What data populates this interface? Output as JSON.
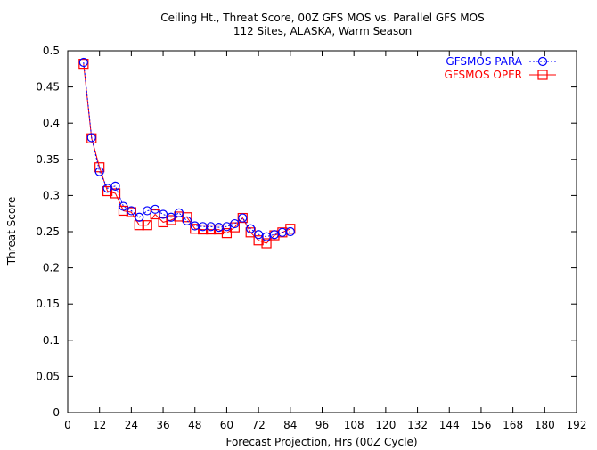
{
  "chart_data": {
    "type": "line",
    "title": "Ceiling Ht., Threat Score, 00Z GFS MOS vs. Parallel GFS MOS",
    "subtitle": "112 Sites, ALASKA, Warm Season",
    "xlabel": "Forecast Projection, Hrs (00Z Cycle)",
    "ylabel": "Threat Score",
    "xlim": [
      0,
      192
    ],
    "ylim": [
      0,
      0.5
    ],
    "xticks": [
      0,
      12,
      24,
      36,
      48,
      60,
      72,
      84,
      96,
      108,
      120,
      132,
      144,
      156,
      168,
      180,
      192
    ],
    "yticks": [
      0,
      0.05,
      0.1,
      0.15,
      0.2,
      0.25,
      0.3,
      0.35,
      0.4,
      0.45,
      0.5
    ],
    "grid": false,
    "legend_position": "top-right",
    "x": [
      6,
      9,
      12,
      15,
      18,
      21,
      24,
      27,
      30,
      33,
      36,
      39,
      42,
      45,
      48,
      51,
      54,
      57,
      60,
      63,
      66,
      69,
      72,
      75,
      78,
      81,
      84
    ],
    "series": [
      {
        "name": "GFSMOS PARA",
        "color": "#0000ff",
        "marker": "circle",
        "line": "dotted",
        "values": [
          0.484,
          0.38,
          0.333,
          0.31,
          0.313,
          0.285,
          0.279,
          0.27,
          0.279,
          0.281,
          0.274,
          0.27,
          0.276,
          0.265,
          0.258,
          0.257,
          0.257,
          0.256,
          0.257,
          0.261,
          0.269,
          0.254,
          0.246,
          0.243,
          0.246,
          0.249,
          0.25
        ]
      },
      {
        "name": "GFSMOS OPER",
        "color": "#ff0000",
        "marker": "square",
        "line": "solid",
        "values": [
          0.482,
          0.379,
          0.339,
          0.306,
          0.303,
          0.279,
          0.277,
          0.259,
          0.259,
          0.274,
          0.263,
          0.266,
          0.271,
          0.27,
          0.254,
          0.253,
          0.253,
          0.253,
          0.248,
          0.256,
          0.269,
          0.249,
          0.238,
          0.234,
          0.245,
          0.249,
          0.254
        ]
      }
    ]
  }
}
